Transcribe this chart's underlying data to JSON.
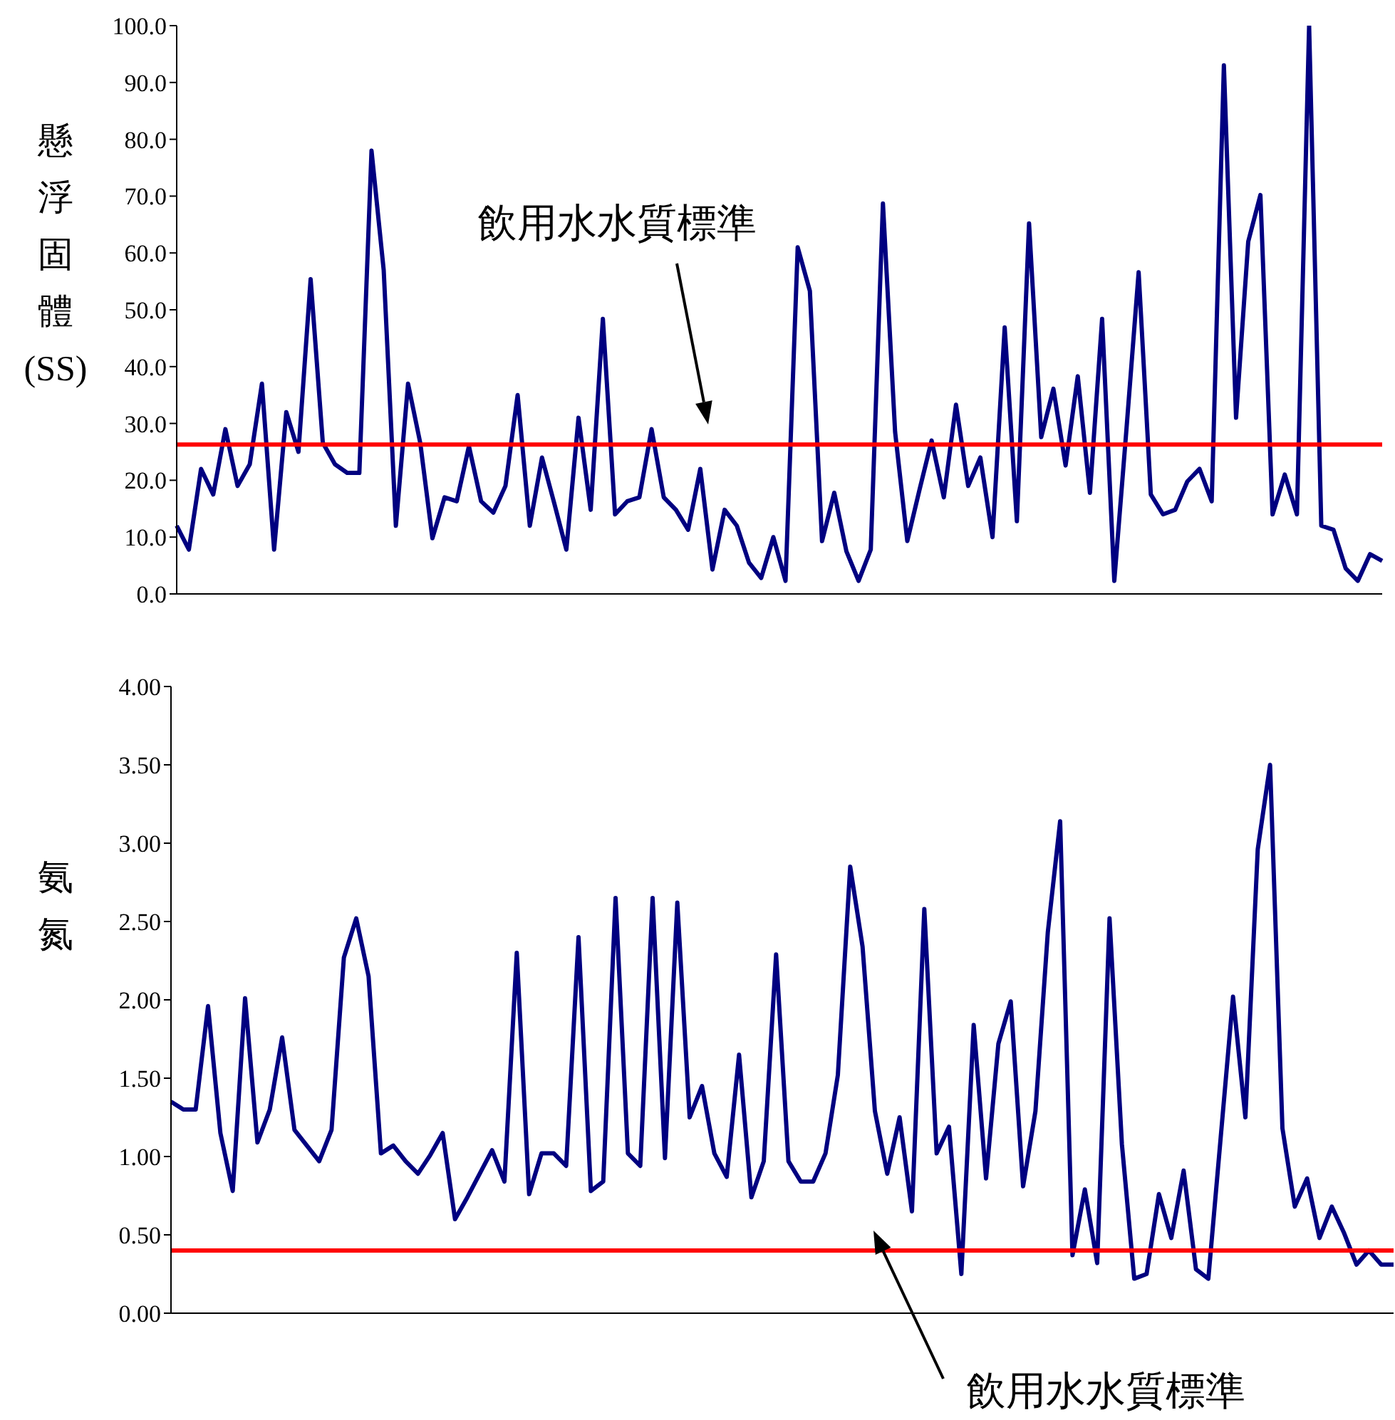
{
  "chart_data": [
    {
      "type": "line",
      "ylabel": "懸浮固體(SS)",
      "categories": [
        null,
        null,
        null,
        null,
        null,
        null,
        null,
        null,
        null,
        null,
        null,
        null,
        null,
        null,
        null,
        null,
        null,
        null,
        null,
        null,
        null,
        null,
        null,
        null,
        null,
        null,
        null,
        null,
        null,
        null,
        null,
        null,
        null,
        null,
        null,
        null,
        null,
        null,
        null,
        null,
        null,
        null,
        null,
        null,
        null,
        null,
        null,
        null,
        null,
        null,
        null,
        null,
        null,
        null,
        null,
        null,
        null,
        null,
        null,
        null,
        null,
        null,
        null,
        null,
        null,
        null,
        null,
        null,
        null,
        null,
        null,
        null,
        null,
        null,
        null,
        null,
        null,
        null,
        null,
        null,
        null,
        null,
        null,
        null,
        null,
        null,
        null,
        null,
        null,
        null,
        null,
        null,
        null,
        null,
        null,
        null,
        null,
        null,
        null,
        null
      ],
      "series": [
        {
          "color": "#000080",
          "values": [
            12.0,
            7.8,
            22,
            17.5,
            29,
            19,
            22.8,
            37,
            7.8,
            32,
            25,
            55.4,
            26.6,
            22.8,
            21.3,
            21.3,
            78,
            57,
            12,
            37,
            26.6,
            9.8,
            17,
            16.3,
            26,
            16.3,
            14.3,
            19,
            35,
            12,
            24,
            16,
            7.8,
            31,
            14.8,
            48.4,
            14,
            16.3,
            17,
            29,
            17,
            14.8,
            11.3,
            22,
            4.3,
            14.8,
            12,
            5.5,
            2.8,
            10,
            2.3,
            61,
            53.3,
            9.3,
            17.8,
            7.5,
            2.3,
            7.8,
            68.7,
            28.5,
            9.3,
            18.3,
            27,
            17,
            33.3,
            19,
            24,
            10,
            46.9,
            12.8,
            65.2,
            27.6,
            36.1,
            22.6,
            38.3,
            17.8,
            48.4,
            2.3,
            29,
            56.6,
            17.5,
            14,
            14.8,
            19.8,
            22,
            16.3,
            93,
            31,
            62,
            70.2,
            14,
            21,
            14,
            100,
            12,
            11.3,
            4.5,
            2.3,
            7,
            5.8
          ]
        }
      ],
      "ylim": [
        0,
        100
      ],
      "yticks": [
        {
          "value": 0,
          "label": "0.0"
        },
        {
          "value": 10,
          "label": "10.0"
        },
        {
          "value": 20,
          "label": "20.0"
        },
        {
          "value": 30,
          "label": "30.0"
        },
        {
          "value": 40,
          "label": "40.0"
        },
        {
          "value": 50,
          "label": "50.0"
        },
        {
          "value": 60,
          "label": "60.0"
        },
        {
          "value": 70,
          "label": "70.0"
        },
        {
          "value": 80,
          "label": "80.0"
        },
        {
          "value": 90,
          "label": "90.0"
        },
        {
          "value": 100,
          "label": "100.0"
        }
      ],
      "tick_labels": "y",
      "grid": false,
      "legend": false,
      "marker": "none",
      "line_style": "solid",
      "ref_lines": [
        {
          "axis": "y",
          "value": 26.3,
          "color": "#ff0000"
        }
      ],
      "annotations": [
        "飲用水水質標準"
      ]
    },
    {
      "type": "line",
      "ylabel": "氨氮",
      "categories": [
        null,
        null,
        null,
        null,
        null,
        null,
        null,
        null,
        null,
        null,
        null,
        null,
        null,
        null,
        null,
        null,
        null,
        null,
        null,
        null,
        null,
        null,
        null,
        null,
        null,
        null,
        null,
        null,
        null,
        null,
        null,
        null,
        null,
        null,
        null,
        null,
        null,
        null,
        null,
        null,
        null,
        null,
        null,
        null,
        null,
        null,
        null,
        null,
        null,
        null,
        null,
        null,
        null,
        null,
        null,
        null,
        null,
        null,
        null,
        null,
        null,
        null,
        null,
        null,
        null,
        null,
        null,
        null,
        null,
        null,
        null,
        null,
        null,
        null,
        null,
        null,
        null,
        null,
        null,
        null,
        null,
        null,
        null,
        null,
        null,
        null,
        null,
        null,
        null,
        null,
        null,
        null,
        null,
        null,
        null,
        null,
        null,
        null,
        null,
        null
      ],
      "series": [
        {
          "color": "#000080",
          "values": [
            1.35,
            1.3,
            1.3,
            1.96,
            1.15,
            0.78,
            2.01,
            1.09,
            1.3,
            1.76,
            1.17,
            1.07,
            0.97,
            1.17,
            2.27,
            2.52,
            2.15,
            1.02,
            1.07,
            0.97,
            0.89,
            1.01,
            1.15,
            0.6,
            0.74,
            0.89,
            1.04,
            0.84,
            2.3,
            0.76,
            1.02,
            1.02,
            0.94,
            2.4,
            0.78,
            0.84,
            2.65,
            1.02,
            0.94,
            2.65,
            0.99,
            2.62,
            1.25,
            1.45,
            1.02,
            0.87,
            1.65,
            0.74,
            0.97,
            2.29,
            0.97,
            0.84,
            0.84,
            1.02,
            1.52,
            2.85,
            2.34,
            1.29,
            0.89,
            1.25,
            0.65,
            2.58,
            1.02,
            1.19,
            0.25,
            1.84,
            0.86,
            1.72,
            1.99,
            0.81,
            1.29,
            2.43,
            3.14,
            0.37,
            0.79,
            0.32,
            2.52,
            1.08,
            0.22,
            0.25,
            0.76,
            0.48,
            0.91,
            0.28,
            0.22,
            1.12,
            2.02,
            1.25,
            2.96,
            3.5,
            1.18,
            0.68,
            0.86,
            0.48,
            0.68,
            0.51,
            0.31,
            0.4,
            0.31,
            0.31
          ]
        }
      ],
      "ylim": [
        0,
        4
      ],
      "yticks": [
        {
          "value": 0,
          "label": "0.00"
        },
        {
          "value": 0.5,
          "label": "0.50"
        },
        {
          "value": 1,
          "label": "1.00"
        },
        {
          "value": 1.5,
          "label": "1.50"
        },
        {
          "value": 2,
          "label": "2.00"
        },
        {
          "value": 2.5,
          "label": "2.50"
        },
        {
          "value": 3,
          "label": "3.00"
        },
        {
          "value": 3.5,
          "label": "3.50"
        },
        {
          "value": 4,
          "label": "4.00"
        }
      ],
      "tick_labels": "y",
      "grid": false,
      "legend": false,
      "marker": "none",
      "line_style": "solid",
      "ref_lines": [
        {
          "axis": "y",
          "value": 0.4,
          "color": "#ff0000"
        }
      ],
      "annotations": [
        "飲用水水質標準"
      ]
    }
  ]
}
